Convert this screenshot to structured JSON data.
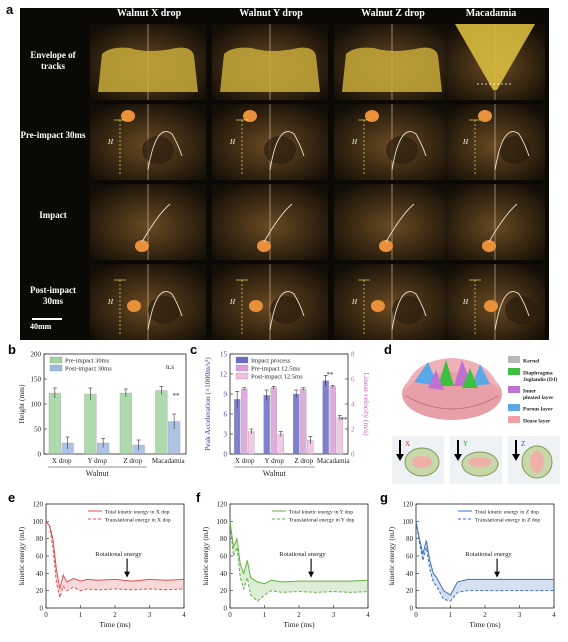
{
  "panel_a": {
    "label": "a",
    "columns": [
      "Walnut X drop",
      "Walnut Y drop",
      "Walnut Z drop",
      "Macadamia"
    ],
    "rows": [
      "Envelope of tracks",
      "Pre-impact 30ms",
      "Impact",
      "Post-impact 30ms"
    ],
    "height_mark": "H",
    "scale": "40mm"
  },
  "panel_d": {
    "label": "d",
    "legend": [
      {
        "name": "Kernel",
        "color": "#b8b8b8"
      },
      {
        "name": "Diaphragma Juglandis (DJ)",
        "color": "#3fbf3f"
      },
      {
        "name": "Inner pleated layer",
        "color": "#c070d0"
      },
      {
        "name": "Porous layer",
        "color": "#5aa8e8"
      },
      {
        "name": "Dense layer",
        "color": "#f0a0a8"
      }
    ],
    "arrows": [
      "X",
      "Y",
      "Z"
    ]
  },
  "chart_data": [
    {
      "label": "b",
      "type": "bar",
      "categories": [
        "X drop",
        "Y drop",
        "Z drop",
        "Macadamia"
      ],
      "group_label": "Walnut",
      "series": [
        {
          "name": "Pre-impact 30ms",
          "values": [
            122,
            120,
            122,
            127
          ],
          "errors": [
            10,
            12,
            8,
            8
          ],
          "color": "#9fd39f"
        },
        {
          "name": "Post-impact 30ms",
          "values": [
            22,
            22,
            18,
            65
          ],
          "errors": [
            12,
            9,
            10,
            15
          ],
          "color": "#9fb8e0"
        }
      ],
      "annotations": [
        "n.s",
        "**"
      ],
      "ylabel": "Height (mm)",
      "ylim": [
        0,
        200
      ],
      "yticks": [
        0,
        50,
        100,
        150,
        200
      ]
    },
    {
      "label": "c",
      "type": "bar",
      "categories": [
        "X drop",
        "Y drop",
        "Z drop",
        "Macadamia"
      ],
      "group_label": "Walnut",
      "series": [
        {
          "name": "Impact process",
          "values": [
            8.2,
            8.8,
            9.0,
            11.0
          ],
          "errors": [
            1.2,
            0.8,
            0.6,
            0.8
          ],
          "axis": "left",
          "color": "#6a6ac8"
        },
        {
          "name": "Pre-impact 12.5ms",
          "values": [
            5.2,
            5.3,
            5.2,
            5.4
          ],
          "errors": [
            0.1,
            0.1,
            0.1,
            0.1
          ],
          "axis": "right",
          "color": "#d8a0d8"
        },
        {
          "name": "Post-impact 12.5ms",
          "values": [
            1.8,
            1.6,
            1.1,
            2.9
          ],
          "errors": [
            0.2,
            0.2,
            0.3,
            0.2
          ],
          "axis": "right",
          "color": "#f0c0e0"
        }
      ],
      "annotations": [
        "**",
        "**"
      ],
      "ylabel": "Peak Acceleration (×1000m/s²)",
      "y2label": "Linear velocity (m/s)",
      "ylim": [
        0,
        15
      ],
      "yticks": [
        0,
        3,
        6,
        9,
        12,
        15
      ],
      "y2lim": [
        0,
        8
      ],
      "y2ticks": [
        0,
        2,
        4,
        6,
        8
      ]
    },
    {
      "label": "e",
      "type": "line",
      "series": [
        {
          "name": "Total kinetic energy in X dop",
          "color": "#e05050",
          "dash": false,
          "x": [
            0,
            0.1,
            0.2,
            0.3,
            0.4,
            0.5,
            0.6,
            0.8,
            1.0,
            1.2,
            1.5,
            2.0,
            2.5,
            3.0,
            3.5,
            4.0
          ],
          "y": [
            100,
            95,
            80,
            45,
            22,
            38,
            30,
            34,
            31,
            33,
            32,
            33,
            31,
            33,
            32,
            33
          ]
        },
        {
          "name": "Translational energy in X dop",
          "color": "#e05050",
          "dash": true,
          "x": [
            0,
            0.1,
            0.2,
            0.3,
            0.4,
            0.5,
            0.6,
            0.8,
            1.0,
            1.2,
            1.5,
            2.0,
            2.5,
            3.0,
            3.5,
            4.0
          ],
          "y": [
            100,
            95,
            70,
            30,
            12,
            25,
            20,
            24,
            20,
            22,
            21,
            22,
            21,
            22,
            21,
            22
          ]
        }
      ],
      "annotation": "Rotational energy",
      "xlabel": "Time (ms)",
      "ylabel": "kinetic energy (mJ)",
      "xlim": [
        0,
        4
      ],
      "ylim": [
        0,
        120
      ],
      "xticks": [
        0,
        1,
        2,
        3,
        4
      ],
      "yticks": [
        0,
        20,
        40,
        60,
        80,
        100,
        120
      ]
    },
    {
      "label": "f",
      "type": "line",
      "series": [
        {
          "name": "Total kinetic energy in Y dop",
          "color": "#60b040",
          "dash": false,
          "x": [
            0,
            0.1,
            0.2,
            0.3,
            0.4,
            0.5,
            0.6,
            0.8,
            1.0,
            1.2,
            1.5,
            2.0,
            2.5,
            3.0,
            3.5,
            4.0
          ],
          "y": [
            100,
            70,
            80,
            50,
            40,
            55,
            35,
            30,
            28,
            32,
            30,
            31,
            31,
            31,
            31,
            32
          ]
        },
        {
          "name": "Translational energy in Y dop",
          "color": "#60b040",
          "dash": true,
          "x": [
            0,
            0.1,
            0.2,
            0.3,
            0.4,
            0.5,
            0.6,
            0.8,
            1.0,
            1.2,
            1.5,
            2.0,
            2.5,
            3.0,
            3.5,
            4.0
          ],
          "y": [
            100,
            60,
            70,
            35,
            22,
            35,
            15,
            8,
            15,
            20,
            18,
            19,
            18,
            19,
            18,
            19
          ]
        }
      ],
      "annotation": "Rotational energy",
      "xlabel": "Time (ms)",
      "ylabel": "kinetic energy (mJ)",
      "xlim": [
        0,
        4
      ],
      "ylim": [
        0,
        120
      ],
      "xticks": [
        0,
        1,
        2,
        3,
        4
      ],
      "yticks": [
        0,
        20,
        40,
        60,
        80,
        100,
        120
      ]
    },
    {
      "label": "g",
      "type": "line",
      "series": [
        {
          "name": "Total kinetic energy in Z dop",
          "color": "#4070c0",
          "dash": false,
          "x": [
            0,
            0.1,
            0.2,
            0.3,
            0.4,
            0.5,
            0.6,
            0.8,
            1.0,
            1.2,
            1.5,
            2.0,
            2.5,
            3.0,
            3.5,
            4.0
          ],
          "y": [
            100,
            80,
            62,
            78,
            55,
            40,
            35,
            20,
            15,
            30,
            33,
            33,
            33,
            33,
            33,
            33
          ]
        },
        {
          "name": "Translational energy in Z dop",
          "color": "#4070c0",
          "dash": true,
          "x": [
            0,
            0.1,
            0.2,
            0.3,
            0.4,
            0.5,
            0.6,
            0.8,
            1.0,
            1.2,
            1.5,
            2.0,
            2.5,
            3.0,
            3.5,
            4.0
          ],
          "y": [
            100,
            75,
            55,
            70,
            45,
            30,
            25,
            10,
            8,
            18,
            20,
            20,
            20,
            20,
            20,
            20
          ]
        }
      ],
      "annotation": "Rotational energy",
      "xlabel": "Time (ms)",
      "ylabel": "kinetic energy (mJ)",
      "xlim": [
        0,
        4
      ],
      "ylim": [
        0,
        120
      ],
      "xticks": [
        0,
        1,
        2,
        3,
        4
      ],
      "yticks": [
        0,
        20,
        40,
        60,
        80,
        100,
        120
      ]
    }
  ]
}
